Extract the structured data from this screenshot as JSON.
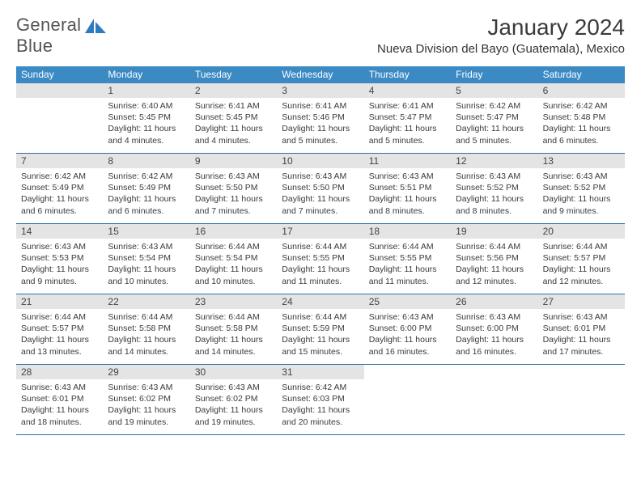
{
  "brand": {
    "word1": "General",
    "word2": "Blue"
  },
  "header": {
    "month_title": "January 2024",
    "location": "Nueva Division del Bayo (Guatemala), Mexico"
  },
  "colors": {
    "header_bg": "#3b8ac4",
    "header_text": "#ffffff",
    "daynum_bg": "#e4e4e4",
    "week_border": "#2f6fa3",
    "brand_blue": "#2f7bbf",
    "body_text": "#3a3a3a"
  },
  "day_names": [
    "Sunday",
    "Monday",
    "Tuesday",
    "Wednesday",
    "Thursday",
    "Friday",
    "Saturday"
  ],
  "weeks": [
    [
      {
        "empty": true
      },
      {
        "n": "1",
        "sr": "Sunrise: 6:40 AM",
        "ss": "Sunset: 5:45 PM",
        "dl": "Daylight: 11 hours and 4 minutes."
      },
      {
        "n": "2",
        "sr": "Sunrise: 6:41 AM",
        "ss": "Sunset: 5:45 PM",
        "dl": "Daylight: 11 hours and 4 minutes."
      },
      {
        "n": "3",
        "sr": "Sunrise: 6:41 AM",
        "ss": "Sunset: 5:46 PM",
        "dl": "Daylight: 11 hours and 5 minutes."
      },
      {
        "n": "4",
        "sr": "Sunrise: 6:41 AM",
        "ss": "Sunset: 5:47 PM",
        "dl": "Daylight: 11 hours and 5 minutes."
      },
      {
        "n": "5",
        "sr": "Sunrise: 6:42 AM",
        "ss": "Sunset: 5:47 PM",
        "dl": "Daylight: 11 hours and 5 minutes."
      },
      {
        "n": "6",
        "sr": "Sunrise: 6:42 AM",
        "ss": "Sunset: 5:48 PM",
        "dl": "Daylight: 11 hours and 6 minutes."
      }
    ],
    [
      {
        "n": "7",
        "sr": "Sunrise: 6:42 AM",
        "ss": "Sunset: 5:49 PM",
        "dl": "Daylight: 11 hours and 6 minutes."
      },
      {
        "n": "8",
        "sr": "Sunrise: 6:42 AM",
        "ss": "Sunset: 5:49 PM",
        "dl": "Daylight: 11 hours and 6 minutes."
      },
      {
        "n": "9",
        "sr": "Sunrise: 6:43 AM",
        "ss": "Sunset: 5:50 PM",
        "dl": "Daylight: 11 hours and 7 minutes."
      },
      {
        "n": "10",
        "sr": "Sunrise: 6:43 AM",
        "ss": "Sunset: 5:50 PM",
        "dl": "Daylight: 11 hours and 7 minutes."
      },
      {
        "n": "11",
        "sr": "Sunrise: 6:43 AM",
        "ss": "Sunset: 5:51 PM",
        "dl": "Daylight: 11 hours and 8 minutes."
      },
      {
        "n": "12",
        "sr": "Sunrise: 6:43 AM",
        "ss": "Sunset: 5:52 PM",
        "dl": "Daylight: 11 hours and 8 minutes."
      },
      {
        "n": "13",
        "sr": "Sunrise: 6:43 AM",
        "ss": "Sunset: 5:52 PM",
        "dl": "Daylight: 11 hours and 9 minutes."
      }
    ],
    [
      {
        "n": "14",
        "sr": "Sunrise: 6:43 AM",
        "ss": "Sunset: 5:53 PM",
        "dl": "Daylight: 11 hours and 9 minutes."
      },
      {
        "n": "15",
        "sr": "Sunrise: 6:43 AM",
        "ss": "Sunset: 5:54 PM",
        "dl": "Daylight: 11 hours and 10 minutes."
      },
      {
        "n": "16",
        "sr": "Sunrise: 6:44 AM",
        "ss": "Sunset: 5:54 PM",
        "dl": "Daylight: 11 hours and 10 minutes."
      },
      {
        "n": "17",
        "sr": "Sunrise: 6:44 AM",
        "ss": "Sunset: 5:55 PM",
        "dl": "Daylight: 11 hours and 11 minutes."
      },
      {
        "n": "18",
        "sr": "Sunrise: 6:44 AM",
        "ss": "Sunset: 5:55 PM",
        "dl": "Daylight: 11 hours and 11 minutes."
      },
      {
        "n": "19",
        "sr": "Sunrise: 6:44 AM",
        "ss": "Sunset: 5:56 PM",
        "dl": "Daylight: 11 hours and 12 minutes."
      },
      {
        "n": "20",
        "sr": "Sunrise: 6:44 AM",
        "ss": "Sunset: 5:57 PM",
        "dl": "Daylight: 11 hours and 12 minutes."
      }
    ],
    [
      {
        "n": "21",
        "sr": "Sunrise: 6:44 AM",
        "ss": "Sunset: 5:57 PM",
        "dl": "Daylight: 11 hours and 13 minutes."
      },
      {
        "n": "22",
        "sr": "Sunrise: 6:44 AM",
        "ss": "Sunset: 5:58 PM",
        "dl": "Daylight: 11 hours and 14 minutes."
      },
      {
        "n": "23",
        "sr": "Sunrise: 6:44 AM",
        "ss": "Sunset: 5:58 PM",
        "dl": "Daylight: 11 hours and 14 minutes."
      },
      {
        "n": "24",
        "sr": "Sunrise: 6:44 AM",
        "ss": "Sunset: 5:59 PM",
        "dl": "Daylight: 11 hours and 15 minutes."
      },
      {
        "n": "25",
        "sr": "Sunrise: 6:43 AM",
        "ss": "Sunset: 6:00 PM",
        "dl": "Daylight: 11 hours and 16 minutes."
      },
      {
        "n": "26",
        "sr": "Sunrise: 6:43 AM",
        "ss": "Sunset: 6:00 PM",
        "dl": "Daylight: 11 hours and 16 minutes."
      },
      {
        "n": "27",
        "sr": "Sunrise: 6:43 AM",
        "ss": "Sunset: 6:01 PM",
        "dl": "Daylight: 11 hours and 17 minutes."
      }
    ],
    [
      {
        "n": "28",
        "sr": "Sunrise: 6:43 AM",
        "ss": "Sunset: 6:01 PM",
        "dl": "Daylight: 11 hours and 18 minutes."
      },
      {
        "n": "29",
        "sr": "Sunrise: 6:43 AM",
        "ss": "Sunset: 6:02 PM",
        "dl": "Daylight: 11 hours and 19 minutes."
      },
      {
        "n": "30",
        "sr": "Sunrise: 6:43 AM",
        "ss": "Sunset: 6:02 PM",
        "dl": "Daylight: 11 hours and 19 minutes."
      },
      {
        "n": "31",
        "sr": "Sunrise: 6:42 AM",
        "ss": "Sunset: 6:03 PM",
        "dl": "Daylight: 11 hours and 20 minutes."
      },
      {
        "blank": true
      },
      {
        "blank": true
      },
      {
        "blank": true
      }
    ]
  ]
}
